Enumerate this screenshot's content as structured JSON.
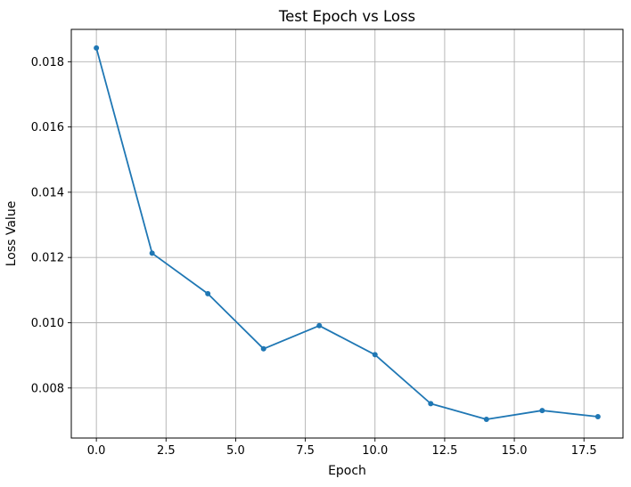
{
  "chart_data": {
    "type": "line",
    "title": "Test Epoch vs Loss",
    "xlabel": "Epoch",
    "ylabel": "Loss Value",
    "x": [
      0,
      2,
      4,
      6,
      8,
      10,
      12,
      14,
      16,
      18
    ],
    "y": [
      0.01842,
      0.01213,
      0.01089,
      0.0092,
      0.00991,
      0.00902,
      0.00752,
      0.00704,
      0.00731,
      0.00712
    ],
    "series_name": "loss",
    "xlim": [
      -0.9,
      18.9
    ],
    "ylim": [
      0.006466,
      0.018991
    ],
    "xticks": {
      "values": [
        0,
        2.5,
        5,
        7.5,
        10,
        12.5,
        15,
        17.5
      ],
      "labels": [
        "0.0",
        "2.5",
        "5.0",
        "7.5",
        "10.0",
        "12.5",
        "15.0",
        "17.5"
      ]
    },
    "yticks": {
      "values": [
        0.008,
        0.01,
        0.012,
        0.014,
        0.016,
        0.018
      ],
      "labels": [
        "0.008",
        "0.010",
        "0.012",
        "0.014",
        "0.016",
        "0.018"
      ]
    },
    "grid": true,
    "legend_position": "none",
    "line_color": "#1f77b4",
    "grid_color": "#b0b0b0",
    "spine_color": "#000000",
    "background_color": "#ffffff",
    "marker": "point"
  }
}
